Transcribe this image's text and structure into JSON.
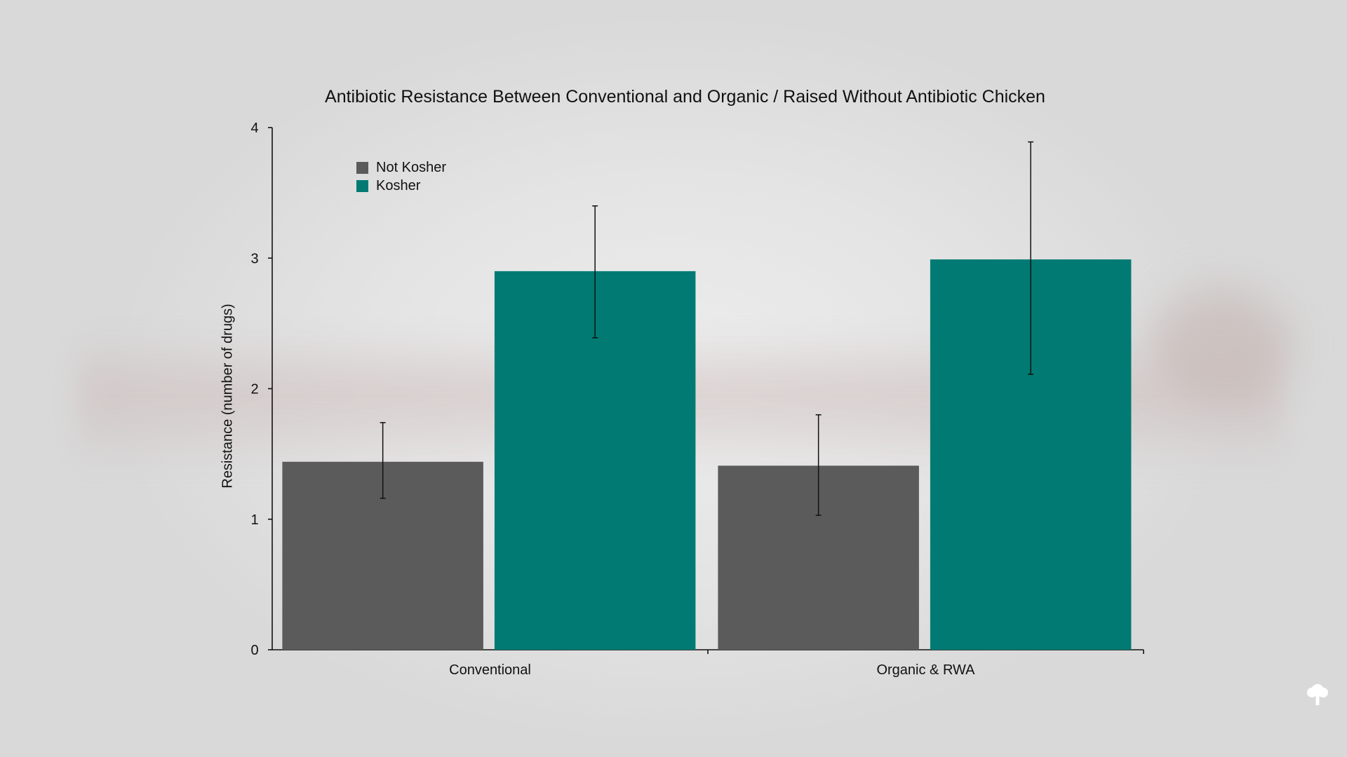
{
  "chart_data": {
    "type": "bar",
    "title": "Antibiotic Resistance Between Conventional and Organic / Raised Without Antibiotic Chicken",
    "xlabel": "",
    "ylabel": "Resistance (number of drugs)",
    "ylim": [
      0,
      4
    ],
    "yticks": [
      "0",
      "1",
      "2",
      "3",
      "4"
    ],
    "categories": [
      "Conventional",
      "Organic & RWA"
    ],
    "series": [
      {
        "name": "Not Kosher",
        "color": "#5b5b5b",
        "values": [
          1.44,
          1.41
        ],
        "error_low": [
          1.16,
          1.03
        ],
        "error_high": [
          1.74,
          1.8
        ]
      },
      {
        "name": "Kosher",
        "color": "#017a73",
        "values": [
          2.9,
          2.99
        ],
        "error_low": [
          2.39,
          2.11
        ],
        "error_high": [
          3.4,
          3.89
        ]
      }
    ],
    "legend_position": "top-left",
    "grid": false
  },
  "logo_icon": "tree-icon"
}
